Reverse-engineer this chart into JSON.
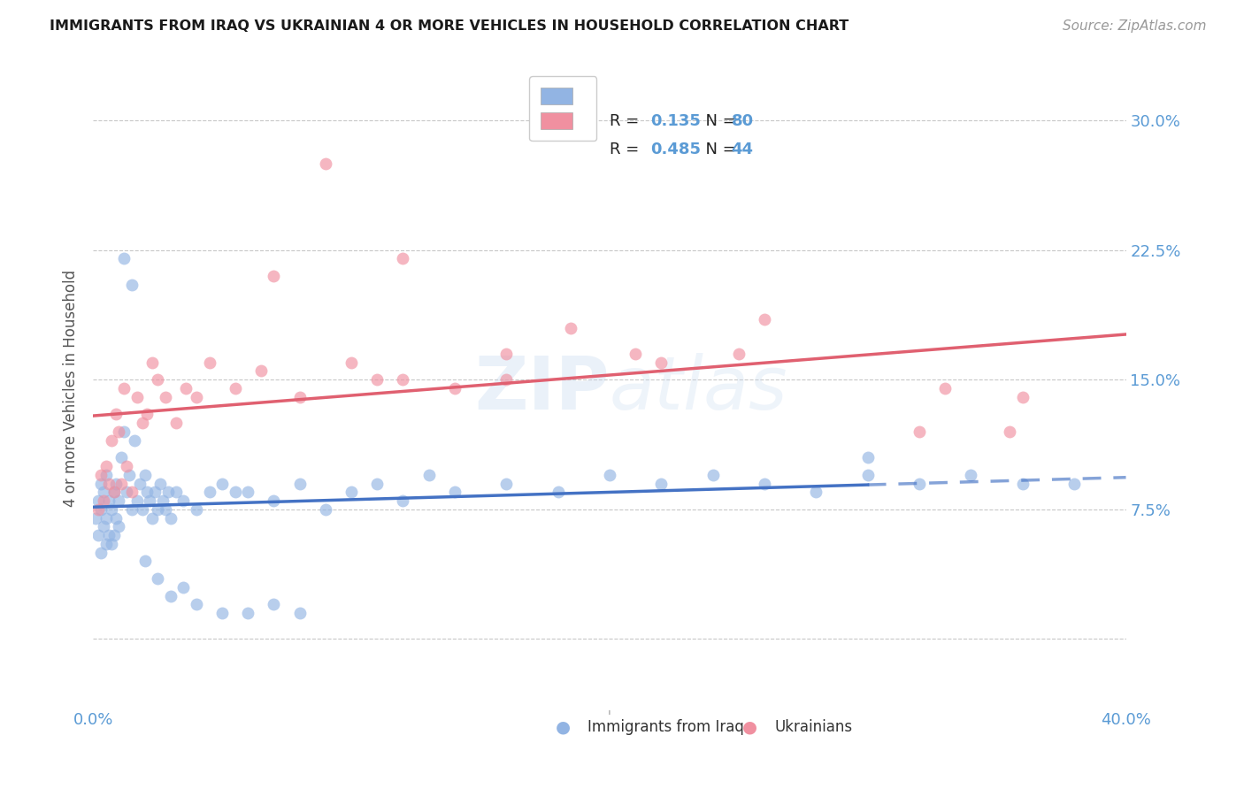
{
  "title": "IMMIGRANTS FROM IRAQ VS UKRAINIAN 4 OR MORE VEHICLES IN HOUSEHOLD CORRELATION CHART",
  "source": "Source: ZipAtlas.com",
  "ylabel": "4 or more Vehicles in Household",
  "legend_R_iraq": "0.135",
  "legend_N_iraq": "80",
  "legend_R_ukr": "0.485",
  "legend_N_ukr": "44",
  "color_iraq": "#92b4e3",
  "color_ukr": "#f090a0",
  "color_iraq_line": "#4472c4",
  "color_ukr_line": "#e06070",
  "color_axis_labels": "#5b9bd5",
  "background_color": "#ffffff",
  "xlim": [
    0.0,
    40.0
  ],
  "ylim_min": -4.0,
  "ylim_max": 33.0,
  "ytick_positions": [
    0.0,
    7.5,
    15.0,
    22.5,
    30.0
  ],
  "ytick_labels_right": [
    "",
    "7.5%",
    "15.0%",
    "22.5%",
    "30.0%"
  ],
  "xtick_positions": [
    0,
    10,
    20,
    30,
    40
  ],
  "xtick_labels": [
    "0.0%",
    "",
    "",
    "",
    "40.0%"
  ],
  "iraq_x": [
    0.1,
    0.2,
    0.2,
    0.3,
    0.3,
    0.3,
    0.4,
    0.4,
    0.5,
    0.5,
    0.5,
    0.6,
    0.6,
    0.7,
    0.7,
    0.8,
    0.8,
    0.9,
    0.9,
    1.0,
    1.0,
    1.1,
    1.2,
    1.3,
    1.4,
    1.5,
    1.6,
    1.7,
    1.8,
    1.9,
    2.0,
    2.1,
    2.2,
    2.3,
    2.4,
    2.5,
    2.6,
    2.7,
    2.8,
    2.9,
    3.0,
    3.2,
    3.5,
    4.0,
    4.5,
    5.0,
    5.5,
    6.0,
    7.0,
    8.0,
    9.0,
    10.0,
    11.0,
    12.0,
    13.0,
    14.0,
    16.0,
    18.0,
    20.0,
    22.0,
    24.0,
    26.0,
    28.0,
    30.0,
    32.0,
    34.0,
    36.0,
    38.0,
    1.2,
    1.5,
    2.0,
    2.5,
    3.0,
    3.5,
    4.0,
    5.0,
    6.0,
    7.0,
    8.0,
    30.0
  ],
  "iraq_y": [
    7.0,
    6.0,
    8.0,
    5.0,
    7.5,
    9.0,
    6.5,
    8.5,
    5.5,
    7.0,
    9.5,
    6.0,
    8.0,
    5.5,
    7.5,
    6.0,
    8.5,
    7.0,
    9.0,
    6.5,
    8.0,
    10.5,
    12.0,
    8.5,
    9.5,
    7.5,
    11.5,
    8.0,
    9.0,
    7.5,
    9.5,
    8.5,
    8.0,
    7.0,
    8.5,
    7.5,
    9.0,
    8.0,
    7.5,
    8.5,
    7.0,
    8.5,
    8.0,
    7.5,
    8.5,
    9.0,
    8.5,
    8.5,
    8.0,
    9.0,
    7.5,
    8.5,
    9.0,
    8.0,
    9.5,
    8.5,
    9.0,
    8.5,
    9.5,
    9.0,
    9.5,
    9.0,
    8.5,
    10.5,
    9.0,
    9.5,
    9.0,
    9.0,
    22.0,
    20.5,
    4.5,
    3.5,
    2.5,
    3.0,
    2.0,
    1.5,
    1.5,
    2.0,
    1.5,
    9.5
  ],
  "ukr_x": [
    0.2,
    0.3,
    0.4,
    0.5,
    0.6,
    0.7,
    0.8,
    0.9,
    1.0,
    1.1,
    1.2,
    1.3,
    1.5,
    1.7,
    1.9,
    2.1,
    2.3,
    2.5,
    2.8,
    3.2,
    3.6,
    4.0,
    4.5,
    5.5,
    6.5,
    8.0,
    10.0,
    12.0,
    14.0,
    16.0,
    18.5,
    22.0,
    26.0,
    32.0,
    36.0,
    7.0,
    9.0,
    12.0,
    16.0,
    25.0,
    11.0,
    21.0,
    33.0,
    35.5
  ],
  "ukr_y": [
    7.5,
    9.5,
    8.0,
    10.0,
    9.0,
    11.5,
    8.5,
    13.0,
    12.0,
    9.0,
    14.5,
    10.0,
    8.5,
    14.0,
    12.5,
    13.0,
    16.0,
    15.0,
    14.0,
    12.5,
    14.5,
    14.0,
    16.0,
    14.5,
    15.5,
    14.0,
    16.0,
    15.0,
    14.5,
    16.5,
    18.0,
    16.0,
    18.5,
    12.0,
    14.0,
    21.0,
    27.5,
    22.0,
    15.0,
    16.5,
    15.0,
    16.5,
    14.5,
    12.0
  ]
}
